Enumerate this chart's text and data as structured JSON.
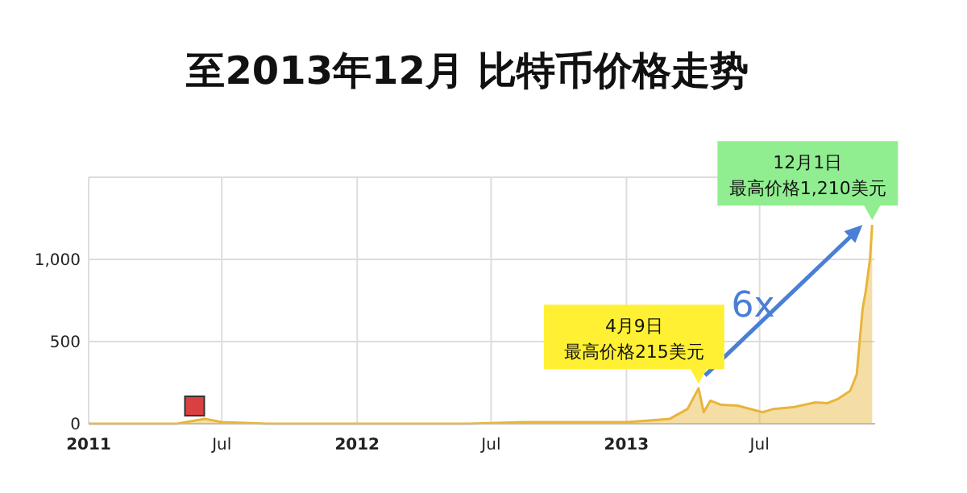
{
  "chart_data": {
    "type": "area",
    "title": "至2013年12月  比特币价格走势",
    "x": [
      "2011-01-01",
      "2011-03-01",
      "2011-05-01",
      "2011-06-08",
      "2011-07-01",
      "2011-09-01",
      "2011-12-01",
      "2012-03-01",
      "2012-06-01",
      "2012-08-15",
      "2012-10-01",
      "2013-01-01",
      "2013-02-01",
      "2013-03-01",
      "2013-03-25",
      "2013-04-09",
      "2013-04-16",
      "2013-04-25",
      "2013-05-10",
      "2013-06-01",
      "2013-07-05",
      "2013-07-20",
      "2013-08-15",
      "2013-09-15",
      "2013-10-01",
      "2013-10-15",
      "2013-11-01",
      "2013-11-10",
      "2013-11-18",
      "2013-11-22",
      "2013-11-28",
      "2013-12-01"
    ],
    "series": [
      {
        "color": "#e8b53a",
        "values": [
          0,
          0,
          0,
          30,
          10,
          0,
          0,
          0,
          0,
          10,
          10,
          10,
          20,
          30,
          90,
          215,
          70,
          140,
          115,
          110,
          70,
          90,
          100,
          130,
          125,
          150,
          200,
          300,
          700,
          800,
          1000,
          1210
        ]
      }
    ],
    "xlim": [
      "2011-01-01",
      "2013-12-05"
    ],
    "xticks": [
      {
        "value": "2011-01-01",
        "label": "2011"
      },
      {
        "value": "2011-07-01",
        "label": "Jul"
      },
      {
        "value": "2012-01-01",
        "label": "2012"
      },
      {
        "value": "2012-07-01",
        "label": "Jul"
      },
      {
        "value": "2013-01-01",
        "label": "2013"
      },
      {
        "value": "2013-07-01",
        "label": "Jul"
      }
    ],
    "ylim": [
      0,
      1500
    ],
    "yticks": [
      0,
      500,
      {
        "value": 1000,
        "label": "1,000"
      },
      {
        "value": 1500,
        "label": null
      }
    ],
    "grid": true,
    "annotations": [
      "4月9日",
      {
        "text": "最高价格215美元",
        "x": "2013-04-09",
        "y": 215
      },
      "12月1日",
      {
        "text": "最高价格1,210美元",
        "x": "2013-12-01",
        "y": 1210
      },
      "6x"
    ]
  }
}
